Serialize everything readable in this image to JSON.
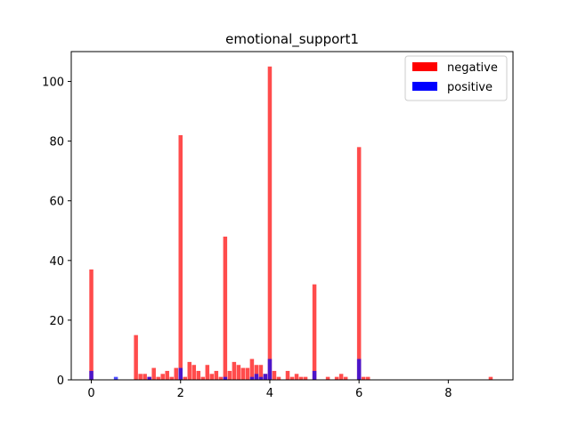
{
  "chart_data": {
    "type": "bar",
    "title": "emotional_support1",
    "xlim": [
      -0.45,
      9.45
    ],
    "ylim": [
      0,
      110
    ],
    "x_ticks": [
      0,
      2,
      4,
      6,
      8
    ],
    "y_ticks": [
      0,
      20,
      40,
      60,
      80,
      100
    ],
    "bin_width": 0.09,
    "legend": {
      "position": "upper right"
    },
    "series": [
      {
        "name": "negative",
        "color": "#ff0000",
        "points": [
          [
            0.0,
            37
          ],
          [
            1.0,
            15
          ],
          [
            1.1,
            2
          ],
          [
            1.2,
            2
          ],
          [
            1.3,
            1
          ],
          [
            1.4,
            4
          ],
          [
            1.5,
            1
          ],
          [
            1.6,
            2
          ],
          [
            1.7,
            3
          ],
          [
            1.8,
            1
          ],
          [
            1.9,
            4
          ],
          [
            2.0,
            82
          ],
          [
            2.1,
            1
          ],
          [
            2.2,
            6
          ],
          [
            2.3,
            5
          ],
          [
            2.4,
            3
          ],
          [
            2.5,
            1
          ],
          [
            2.6,
            5
          ],
          [
            2.7,
            2
          ],
          [
            2.8,
            3
          ],
          [
            2.9,
            1
          ],
          [
            3.0,
            48
          ],
          [
            3.1,
            3
          ],
          [
            3.2,
            6
          ],
          [
            3.3,
            5
          ],
          [
            3.4,
            4
          ],
          [
            3.5,
            4
          ],
          [
            3.6,
            7
          ],
          [
            3.7,
            5
          ],
          [
            3.8,
            5
          ],
          [
            3.9,
            2
          ],
          [
            4.0,
            105
          ],
          [
            4.1,
            3
          ],
          [
            4.2,
            1
          ],
          [
            4.4,
            3
          ],
          [
            4.5,
            1
          ],
          [
            4.6,
            2
          ],
          [
            4.7,
            1
          ],
          [
            4.8,
            1
          ],
          [
            5.0,
            32
          ],
          [
            5.3,
            1
          ],
          [
            5.5,
            1
          ],
          [
            5.6,
            2
          ],
          [
            5.7,
            1
          ],
          [
            6.0,
            78
          ],
          [
            6.1,
            1
          ],
          [
            6.2,
            1
          ],
          [
            8.95,
            1
          ]
        ]
      },
      {
        "name": "positive",
        "color": "#0000ff",
        "points": [
          [
            0.0,
            3
          ],
          [
            0.55,
            1
          ],
          [
            1.3,
            1
          ],
          [
            2.0,
            4
          ],
          [
            3.0,
            1
          ],
          [
            3.6,
            1
          ],
          [
            3.7,
            2
          ],
          [
            3.8,
            1
          ],
          [
            3.9,
            2
          ],
          [
            4.0,
            7
          ],
          [
            5.0,
            3
          ],
          [
            6.0,
            7
          ]
        ]
      }
    ]
  }
}
